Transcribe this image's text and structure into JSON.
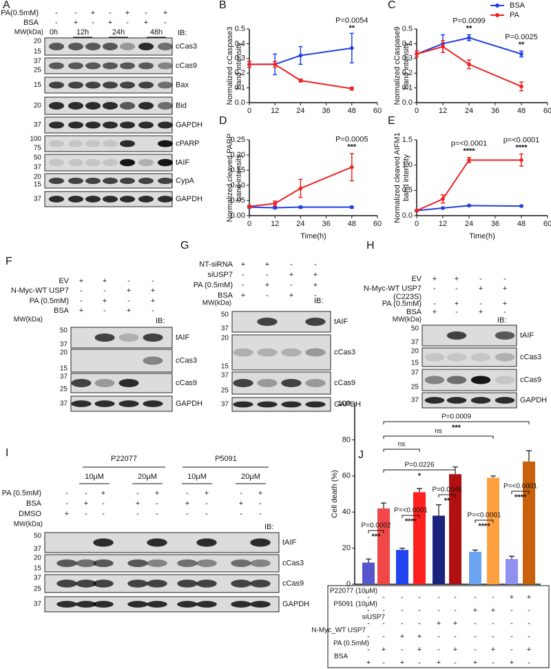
{
  "blots": [
    {
      "panel": "A",
      "treatments": [
        {
          "label": "PA(0.5mM)",
          "signs": [
            "-",
            "-",
            "+",
            "-",
            "+",
            "-",
            "+"
          ]
        },
        {
          "label": "BSA",
          "signs": [
            "-",
            "+",
            "-",
            "+",
            "-",
            "+",
            "-"
          ]
        }
      ],
      "mw_label": "MW(kDa)",
      "timepoints": [
        "0h",
        "12h",
        "24h",
        "48h"
      ],
      "ib": "IB:",
      "strips": [
        {
          "name": "cCas3",
          "mw": [
            "20",
            "15"
          ]
        },
        {
          "name": "cCas9",
          "mw": [
            "37",
            "25"
          ]
        },
        {
          "name": "Bax",
          "mw": [
            "15"
          ]
        },
        {
          "name": "Bid",
          "mw": [
            "20"
          ]
        },
        {
          "name": "GAPDH",
          "mw": [
            "37"
          ]
        },
        {
          "name": "cPARP",
          "mw": [
            "100",
            "75"
          ]
        },
        {
          "name": "tAIF",
          "mw": [
            "50",
            "37"
          ]
        },
        {
          "name": "CypA",
          "mw": [
            "20",
            "15"
          ]
        },
        {
          "name": "GAPDH",
          "mw": [
            "37"
          ]
        }
      ]
    },
    {
      "panel": "F",
      "treatments": [
        {
          "label": "EV",
          "signs": [
            "+",
            "+",
            "-",
            "-"
          ]
        },
        {
          "label": "N-Myc-WT USP7",
          "signs": [
            "-",
            "-",
            "+",
            "+"
          ]
        },
        {
          "label": "PA (0.5mM)",
          "signs": [
            "-",
            "+",
            "-",
            "+"
          ]
        },
        {
          "label": "BSA",
          "signs": [
            "+",
            "-",
            "+",
            "-"
          ]
        }
      ],
      "mw_label": "MW(kDa)",
      "ib": "IB:",
      "strips": [
        {
          "name": "tAIF",
          "mw": [
            "50",
            "37"
          ]
        },
        {
          "name": "cCas3",
          "mw": [
            "20",
            "15"
          ]
        },
        {
          "name": "cCas9",
          "mw": [
            "37",
            "25"
          ]
        },
        {
          "name": "GAPDH",
          "mw": [
            "37"
          ]
        }
      ]
    },
    {
      "panel": "G",
      "treatments": [
        {
          "label": "NT-siRNA",
          "signs": [
            "+",
            "+",
            "-",
            "-"
          ]
        },
        {
          "label": "siUSP7",
          "signs": [
            "-",
            "-",
            "+",
            "+"
          ]
        },
        {
          "label": "PA (0.5mM)",
          "signs": [
            "-",
            "+",
            "-",
            "+"
          ]
        },
        {
          "label": "BSA",
          "signs": [
            "+",
            "-",
            "+",
            "-"
          ]
        }
      ],
      "mw_label": "MW(kDa)",
      "ib": "IB:",
      "strips": [
        {
          "name": "tAIF",
          "mw": [
            "50",
            "37"
          ]
        },
        {
          "name": "cCas3",
          "mw": [
            "20",
            "15"
          ]
        },
        {
          "name": "cCas9",
          "mw": [
            "37",
            "25"
          ]
        },
        {
          "name": "GAPDH",
          "mw": [
            "37"
          ]
        }
      ]
    },
    {
      "panel": "H",
      "treatments": [
        {
          "label": "EV",
          "signs": [
            "+",
            "+",
            "-",
            "-"
          ]
        },
        {
          "label": [
            "N-Myc-WT USP7",
            "(C223S)"
          ],
          "signs": [
            "-",
            "-",
            "+",
            "+"
          ]
        },
        {
          "label": "PA (0.5mM)",
          "signs": [
            "-",
            "+",
            "-",
            "+"
          ]
        },
        {
          "label": "BSA",
          "signs": [
            "+",
            "-",
            "+",
            "-"
          ]
        }
      ],
      "mw_label": "MW(kDa)",
      "ib": "IB:",
      "strips": [
        {
          "name": "tAIF",
          "mw": [
            "50",
            "37"
          ]
        },
        {
          "name": "cCas3",
          "mw": [
            "20",
            "15"
          ]
        },
        {
          "name": "cCas9",
          "mw": [
            "37",
            "25"
          ]
        },
        {
          "name": "GAPDH",
          "mw": [
            "37"
          ]
        }
      ]
    },
    {
      "panel": "I",
      "groups": [
        {
          "label": "P22077",
          "doses": [
            "10μM",
            "20μM"
          ]
        },
        {
          "label": "P5091",
          "doses": [
            "10μM",
            "20μM"
          ]
        }
      ],
      "treatments": [
        {
          "label": "PA (0.5mM)",
          "signs": [
            "-",
            "-",
            "+",
            "-",
            "+",
            "-",
            "+",
            "-",
            "+"
          ]
        },
        {
          "label": "BSA",
          "signs": [
            "-",
            "+",
            "-",
            "+",
            "-",
            "+",
            "-",
            "+",
            "-"
          ]
        },
        {
          "label": "DMSO",
          "signs": [
            "+",
            "-",
            "-",
            "-",
            "-",
            "-",
            "-",
            "-",
            "-"
          ]
        }
      ],
      "mw_label": "MW(kDa)",
      "ib": "IB:",
      "strips": [
        {
          "name": "tAIF",
          "mw": [
            "50",
            "37"
          ]
        },
        {
          "name": "cCas3",
          "mw": [
            "20",
            "15"
          ]
        },
        {
          "name": "cCas9",
          "mw": [
            "37",
            "25"
          ]
        },
        {
          "name": "GAPDH",
          "mw": [
            "37"
          ]
        }
      ]
    }
  ],
  "chart_data": [
    {
      "type": "line",
      "panel": "B",
      "ylabel": [
        "Normalized cCaspase3",
        "band intensity"
      ],
      "x": [
        0,
        12,
        24,
        48
      ],
      "series": [
        {
          "color": "#1f3fe0",
          "values": [
            0.26,
            0.26,
            0.32,
            0.37
          ],
          "errors": [
            0.02,
            0.07,
            0.06,
            0.1
          ]
        },
        {
          "color": "#ee2222",
          "values": [
            0.26,
            0.26,
            0.15,
            0.095
          ],
          "errors": [
            0.02,
            0.02,
            0.01,
            0.01
          ]
        }
      ],
      "xlim": [
        0,
        60
      ],
      "xticks": [
        0,
        12,
        24,
        36,
        48,
        60
      ],
      "ylim": [
        0,
        0.5
      ],
      "yticks": [
        {
          "value": 0,
          "label": "0.0"
        },
        0.1,
        0.2,
        0.3,
        0.4,
        0.5
      ],
      "annotations": [
        {
          "label": "P=0.0054",
          "stars": "**",
          "x": 48
        }
      ]
    },
    {
      "type": "line",
      "panel": "C",
      "ylabel": [
        "Normalized cCaspase9",
        "band intensity"
      ],
      "x": [
        0,
        12,
        24,
        48
      ],
      "series": [
        {
          "name": "BSA",
          "color": "#1f3fe0",
          "values": [
            0.33,
            0.4,
            0.44,
            0.33
          ],
          "errors": [
            0.02,
            0.06,
            0.02,
            0.02
          ]
        },
        {
          "name": "PA",
          "color": "#ee2222",
          "values": [
            0.33,
            0.38,
            0.26,
            0.11
          ],
          "errors": [
            0.02,
            0.04,
            0.03,
            0.03
          ]
        }
      ],
      "xlim": [
        0,
        60
      ],
      "xticks": [
        0,
        12,
        24,
        36,
        48,
        60
      ],
      "ylim": [
        0,
        0.5
      ],
      "yticks": [
        {
          "value": 0,
          "label": "0.0"
        },
        0.1,
        0.2,
        0.3,
        0.4,
        0.5
      ],
      "legend": "top-right",
      "annotations": [
        {
          "label": "P=0.0099",
          "stars": "**",
          "x": 24
        },
        {
          "label": "P=0.0025",
          "stars": "**",
          "x": 48
        }
      ]
    },
    {
      "type": "line",
      "panel": "D",
      "ylabel": [
        "Normalized cleaved PARP",
        "band intensity"
      ],
      "xlabel": "Time(h)",
      "x": [
        0,
        12,
        24,
        48
      ],
      "series": [
        {
          "color": "#1f3fe0",
          "values": [
            0.028,
            0.026,
            0.028,
            0.028
          ],
          "errors": [
            0.003,
            0.003,
            0.003,
            0.003
          ]
        },
        {
          "color": "#ee2222",
          "values": [
            0.03,
            0.04,
            0.09,
            0.16
          ],
          "errors": [
            0.004,
            0.008,
            0.03,
            0.045
          ]
        }
      ],
      "xlim": [
        0,
        60
      ],
      "xticks": [
        0,
        12,
        24,
        36,
        48,
        60
      ],
      "ylim": [
        0,
        0.25
      ],
      "yticks": [
        {
          "value": 0,
          "label": "0.00"
        },
        {
          "value": 0.05,
          "label": "0.05"
        },
        {
          "value": 0.1,
          "label": "0.10"
        },
        {
          "value": 0.15,
          "label": "0.15"
        },
        {
          "value": 0.2,
          "label": "0.20"
        },
        {
          "value": 0.25,
          "label": "0.25"
        }
      ],
      "annotations": [
        {
          "label": "P=0.0005",
          "stars": "***",
          "x": 48
        }
      ]
    },
    {
      "type": "line",
      "panel": "E",
      "ylabel": [
        "Normalized cleaved AIFM1",
        "band intensity"
      ],
      "xlabel": "Time(h)",
      "x": [
        0,
        12,
        24,
        48
      ],
      "series": [
        {
          "color": "#1f3fe0",
          "values": [
            0.1,
            0.15,
            0.2,
            0.19
          ],
          "errors": [
            0.01,
            0.01,
            0.01,
            0.01
          ]
        },
        {
          "color": "#ee2222",
          "values": [
            0.1,
            0.33,
            1.1,
            1.1
          ],
          "errors": [
            0.02,
            0.08,
            0.05,
            0.12
          ]
        }
      ],
      "xlim": [
        0,
        60
      ],
      "xticks": [
        0,
        12,
        24,
        36,
        48,
        60
      ],
      "ylim": [
        0,
        1.5
      ],
      "yticks": [
        {
          "value": 0,
          "label": "0.0"
        },
        0.5,
        {
          "value": 1,
          "label": "1.0"
        },
        1.5
      ],
      "annotations": [
        {
          "label": "p=<0.0001",
          "stars": "****",
          "x": 24
        },
        {
          "label": "p=<0.0001",
          "stars": "****",
          "x": 48
        }
      ]
    },
    {
      "type": "bar",
      "panel": "J",
      "ylabel": "Cell death (%)",
      "values": [
        12,
        42,
        19,
        51,
        38,
        61,
        18,
        59,
        14,
        68
      ],
      "errors": [
        2,
        3,
        1,
        2,
        6,
        4,
        1,
        1,
        1.5,
        6
      ],
      "colors": [
        "#5555cc",
        "#f04848",
        "#2244ee",
        "#ff2020",
        "#1a237e",
        "#b01010",
        "#6aa4f0",
        "#ffa040",
        "#9090ee",
        "#c8600c"
      ],
      "ylim": [
        0,
        100
      ],
      "yticks": [
        0,
        20,
        40,
        60,
        80,
        100
      ],
      "comparisons": [
        {
          "label": "P=0.0009",
          "stars": "***"
        },
        {
          "label": "ns"
        },
        {
          "label": "P=0.0226",
          "stars": "*"
        },
        {
          "label": "ns"
        },
        {
          "label": "P=0.0002",
          "stars": "***"
        },
        {
          "label": "P=<0.0001",
          "stars": "****"
        },
        {
          "label": "P=0.0045",
          "stars": "**"
        },
        {
          "label": "P=<0.0001",
          "stars": "****"
        },
        {
          "label": "P=<0.0001",
          "stars": "****"
        }
      ],
      "conditions": [
        {
          "label": "P22077 (10μM)",
          "signs": [
            "-",
            "-",
            "-",
            "-",
            "-",
            "-",
            "-",
            "-",
            "+",
            "+"
          ]
        },
        {
          "label": "P5091 (10μM)",
          "signs": [
            "-",
            "-",
            "-",
            "-",
            "-",
            "-",
            "+",
            "+",
            "-",
            "-"
          ]
        },
        {
          "label": "siUSP7",
          "signs": [
            "-",
            "-",
            "-",
            "-",
            "+",
            "+",
            "-",
            "-",
            "-",
            "-"
          ]
        },
        {
          "label": "N-Myc_WT USP7",
          "signs": [
            "-",
            "-",
            "+",
            "+",
            "-",
            "-",
            "-",
            "-",
            "-",
            "-"
          ]
        },
        {
          "label": "PA (0.5mM)",
          "signs": [
            "-",
            "+",
            "-",
            "+",
            "-",
            "+",
            "-",
            "+",
            "-",
            "+"
          ]
        },
        {
          "label": "BSA",
          "signs": [
            "+",
            "-",
            "+",
            "-",
            "+",
            "-",
            "+",
            "-",
            "+",
            "-"
          ]
        }
      ]
    }
  ]
}
